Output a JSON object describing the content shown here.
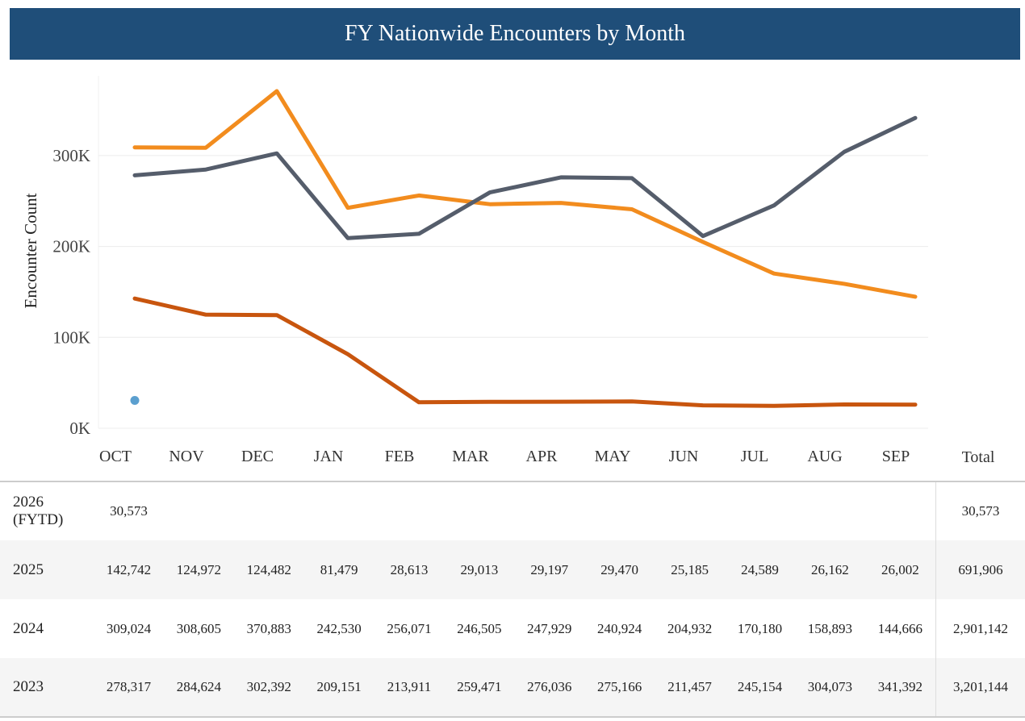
{
  "title": "FY Nationwide Encounters by Month",
  "total_header": "Total",
  "chart_data": {
    "type": "line",
    "title": "FY Nationwide Encounters by Month",
    "xlabel": "",
    "ylabel": "Encounter Count",
    "categories": [
      "OCT",
      "NOV",
      "DEC",
      "JAN",
      "FEB",
      "MAR",
      "APR",
      "MAY",
      "JUN",
      "JUL",
      "AUG",
      "SEP"
    ],
    "yticks": [
      0,
      100000,
      200000,
      300000
    ],
    "ytick_labels": [
      "0K",
      "100K",
      "200K",
      "300K"
    ],
    "ylim": [
      0,
      380000
    ],
    "grid": true,
    "series": [
      {
        "name": "2026 (FYTD)",
        "color": "#5b9fcf",
        "values": [
          30573,
          null,
          null,
          null,
          null,
          null,
          null,
          null,
          null,
          null,
          null,
          null
        ]
      },
      {
        "name": "2025",
        "color": "#c8550e",
        "values": [
          142742,
          124972,
          124482,
          81479,
          28613,
          29013,
          29197,
          29470,
          25185,
          24589,
          26162,
          26002
        ]
      },
      {
        "name": "2024",
        "color": "#f28c1e",
        "values": [
          309024,
          308605,
          370883,
          242530,
          256071,
          246505,
          247929,
          240924,
          204932,
          170180,
          158893,
          144666
        ]
      },
      {
        "name": "2023",
        "color": "#555d6b",
        "values": [
          278317,
          284624,
          302392,
          209151,
          213911,
          259471,
          276036,
          275166,
          211457,
          245154,
          304073,
          341392
        ]
      }
    ]
  },
  "table": {
    "rows": [
      {
        "year": "2026 (FYTD)",
        "cells": [
          "30,573",
          "",
          "",
          "",
          "",
          "",
          "",
          "",
          "",
          "",
          "",
          ""
        ],
        "total": "30,573"
      },
      {
        "year": "2025",
        "cells": [
          "142,742",
          "124,972",
          "124,482",
          "81,479",
          "28,613",
          "29,013",
          "29,197",
          "29,470",
          "25,185",
          "24,589",
          "26,162",
          "26,002"
        ],
        "total": "691,906"
      },
      {
        "year": "2024",
        "cells": [
          "309,024",
          "308,605",
          "370,883",
          "242,530",
          "256,071",
          "246,505",
          "247,929",
          "240,924",
          "204,932",
          "170,180",
          "158,893",
          "144,666"
        ],
        "total": "2,901,142"
      },
      {
        "year": "2023",
        "cells": [
          "278,317",
          "284,624",
          "302,392",
          "209,151",
          "213,911",
          "259,471",
          "276,036",
          "275,166",
          "211,457",
          "245,154",
          "304,073",
          "341,392"
        ],
        "total": "3,201,144"
      }
    ]
  }
}
